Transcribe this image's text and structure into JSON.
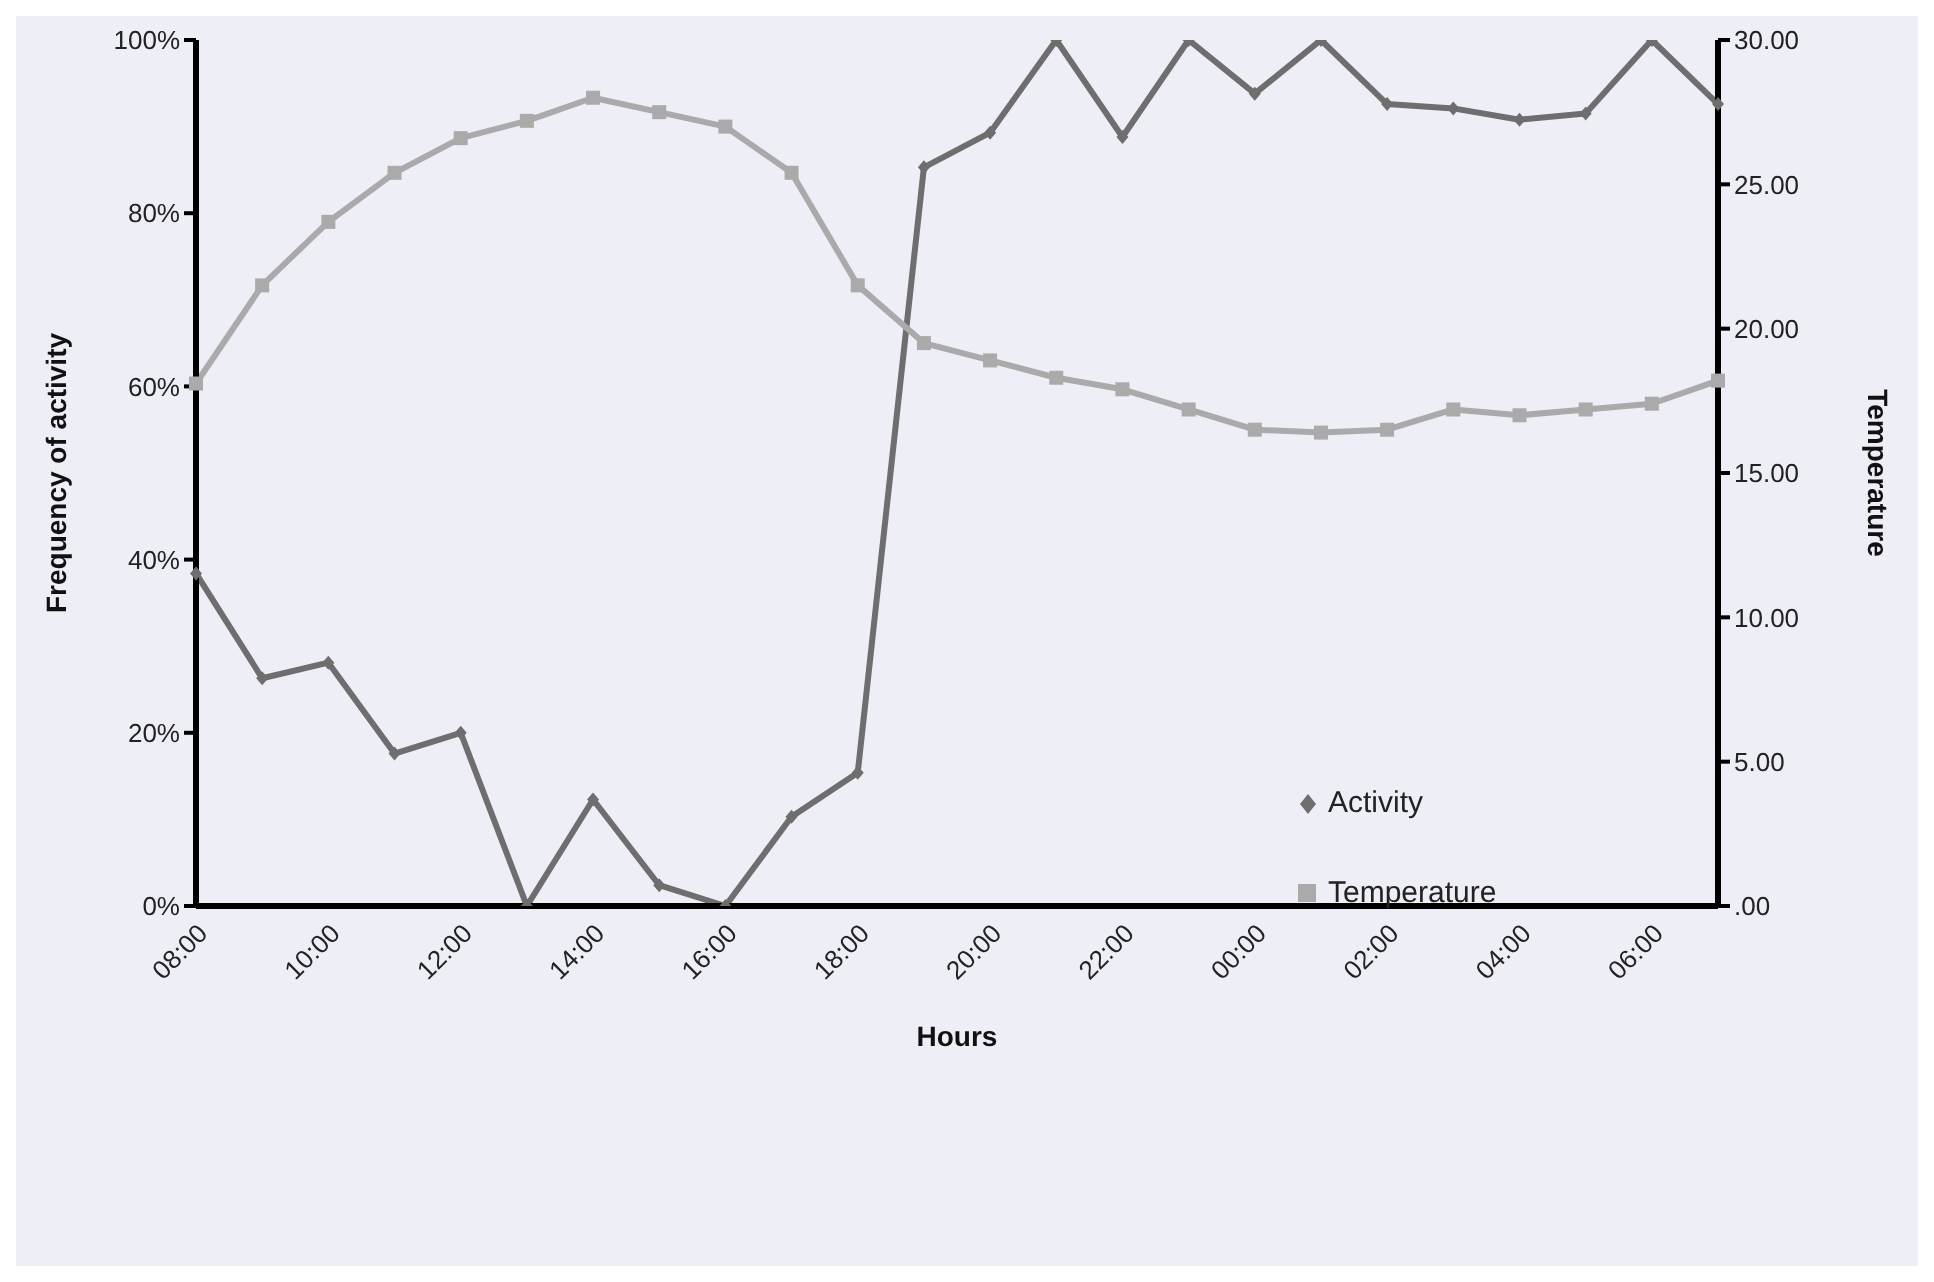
{
  "chart_data": {
    "type": "line",
    "xlabel": "Hours",
    "ylabel": "Frequency of activity",
    "y2label": "Temperature",
    "categories": [
      "08:00",
      null,
      "10:00",
      null,
      "12:00",
      null,
      "14:00",
      null,
      "16:00",
      null,
      "18:00",
      null,
      "20:00",
      null,
      "22:00",
      null,
      "00:00",
      null,
      "02:00",
      null,
      "04:00",
      null,
      "06:00",
      null
    ],
    "series": [
      {
        "name": "Activity",
        "color": "#6e6e6e",
        "marker": "diamond",
        "values": [
          38.4,
          26.3,
          28.1,
          17.6,
          20.0,
          0,
          12.3,
          2.4,
          0,
          10.3,
          15.4,
          85.3,
          89.3,
          100,
          88.8,
          100,
          93.8,
          100,
          92.6,
          92.1,
          90.8,
          91.5,
          100,
          92.6
        ]
      },
      {
        "name": "Temperature",
        "color": "#aaaaaa",
        "marker": "square",
        "axis": "y2",
        "values": [
          18.1,
          21.5,
          23.7,
          25.4,
          26.6,
          27.2,
          28.0,
          27.5,
          27.0,
          25.4,
          21.5,
          19.5,
          18.9,
          18.3,
          17.9,
          17.2,
          16.5,
          16.4,
          16.5,
          17.2,
          17.0,
          17.2,
          17.4,
          18.2
        ]
      }
    ],
    "ylim": [
      0,
      100
    ],
    "yticks": [
      {
        "value": 0,
        "label": "0%"
      },
      {
        "value": 20,
        "label": "20%"
      },
      {
        "value": 40,
        "label": "40%"
      },
      {
        "value": 60,
        "label": "60%"
      },
      {
        "value": 80,
        "label": "80%"
      },
      {
        "value": 100,
        "label": "100%"
      }
    ],
    "y2lim": [
      0,
      30
    ],
    "y2ticks": [
      {
        "value": 0,
        "label": ".00"
      },
      {
        "value": 5,
        "label": "5.00"
      },
      {
        "value": 10,
        "label": "10.00"
      },
      {
        "value": 15,
        "label": "15.00"
      },
      {
        "value": 20,
        "label": "20.00"
      },
      {
        "value": 25,
        "label": "25.00"
      },
      {
        "value": 30,
        "label": "30.00"
      }
    ],
    "grid": false,
    "legend": "bottom right",
    "line_style": "solid"
  }
}
